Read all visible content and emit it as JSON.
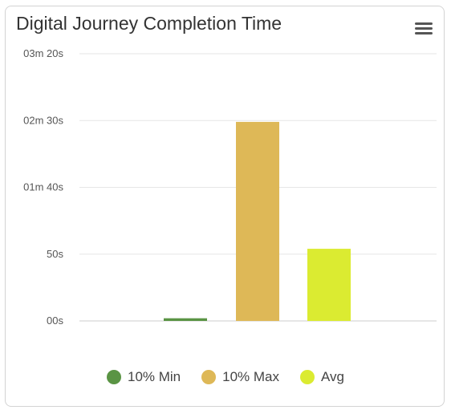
{
  "chart_data": {
    "type": "bar",
    "title": "Digital Journey Completion Time",
    "xlabel": "",
    "ylabel": "",
    "y_unit": "seconds",
    "ylim": [
      0,
      200
    ],
    "y_ticks": [
      {
        "value": 0,
        "label": "00s"
      },
      {
        "value": 50,
        "label": "50s"
      },
      {
        "value": 100,
        "label": "01m 40s"
      },
      {
        "value": 150,
        "label": "02m 30s"
      },
      {
        "value": 200,
        "label": "03m 20s"
      }
    ],
    "series": [
      {
        "name": "10% Min",
        "value": 2,
        "color": "#5a9444"
      },
      {
        "name": "10% Max",
        "value": 149,
        "color": "#deb857"
      },
      {
        "name": "Avg",
        "value": 54,
        "color": "#dbeb31"
      }
    ],
    "grid": true,
    "legend_position": "bottom-center"
  },
  "menu": {
    "icon": "hamburger-menu-icon"
  }
}
